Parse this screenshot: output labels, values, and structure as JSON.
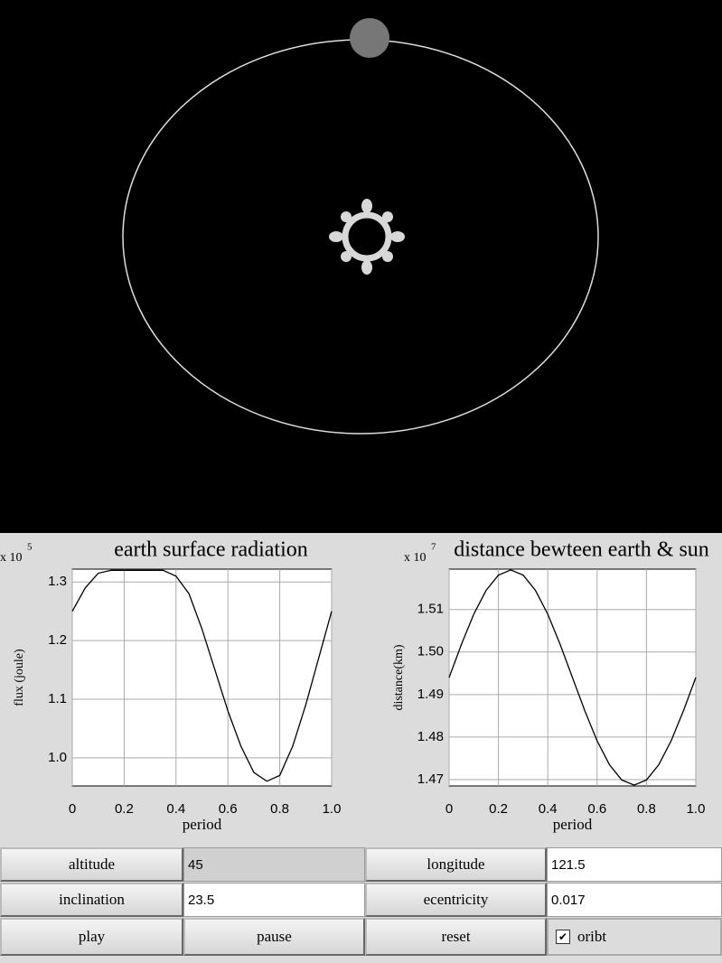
{
  "chart_data": [
    {
      "type": "line",
      "title": "earth surface radiation",
      "y_multiplier": "x 10",
      "y_multiplier_exp": "5",
      "xlabel": "period",
      "ylabel": "flux (joule)",
      "x": [
        0,
        0.05,
        0.1,
        0.15,
        0.2,
        0.25,
        0.3,
        0.35,
        0.4,
        0.45,
        0.5,
        0.55,
        0.6,
        0.65,
        0.7,
        0.75,
        0.8,
        0.85,
        0.9,
        0.95,
        1.0
      ],
      "series": [
        {
          "color": "#000000",
          "values": [
            1.25,
            1.29,
            1.315,
            1.32,
            1.32,
            1.32,
            1.32,
            1.32,
            1.31,
            1.28,
            1.22,
            1.15,
            1.08,
            1.02,
            0.975,
            0.96,
            0.97,
            1.02,
            1.09,
            1.17,
            1.25
          ]
        }
      ],
      "xlim": [
        0,
        1
      ],
      "xticks": [
        0,
        0.2,
        0.4,
        0.6,
        0.8,
        {
          "value": 1,
          "label": "1.0"
        }
      ],
      "ylim": [
        0.952,
        1.322
      ],
      "yticks": [
        {
          "value": 1,
          "label": "1.0"
        },
        1.1,
        1.2,
        1.3
      ],
      "grid": true
    },
    {
      "type": "line",
      "title": "distance bewteen earth & sun",
      "y_multiplier": "x 10",
      "y_multiplier_exp": "7",
      "xlabel": "period",
      "ylabel": "distance(km)",
      "x": [
        0,
        0.05,
        0.1,
        0.15,
        0.2,
        0.25,
        0.3,
        0.35,
        0.4,
        0.45,
        0.5,
        0.55,
        0.6,
        0.65,
        0.7,
        0.75,
        0.8,
        0.85,
        0.9,
        0.95,
        1.0
      ],
      "series": [
        {
          "color": "#000000",
          "values": [
            1.494,
            1.5018,
            1.5089,
            1.5145,
            1.5181,
            1.5193,
            1.5181,
            1.5145,
            1.5089,
            1.5018,
            1.494,
            1.4862,
            1.4791,
            1.4735,
            1.4699,
            1.4687,
            1.4699,
            1.4735,
            1.4791,
            1.4862,
            1.494
          ]
        }
      ],
      "xlim": [
        0,
        1
      ],
      "xticks": [
        0,
        0.2,
        0.4,
        0.6,
        0.8,
        {
          "value": 1,
          "label": "1.0"
        }
      ],
      "ylim": [
        1.4685,
        1.5195
      ],
      "yticks": [
        1.47,
        1.48,
        1.49,
        {
          "value": 1.5,
          "label": "1.50"
        },
        1.51
      ],
      "grid": true
    }
  ],
  "controls": {
    "altitude_button": "altitude",
    "altitude_value": "45",
    "longitude_button": "longitude",
    "longitude_value": "121.5",
    "inclination_button": "inclination",
    "inclination_value": "23.5",
    "eccentricity_button": "ecentricity",
    "eccentricity_value": "0.017",
    "play_button": "play",
    "pause_button": "pause",
    "reset_button": "reset",
    "orbit_checkbox": "oribt"
  }
}
